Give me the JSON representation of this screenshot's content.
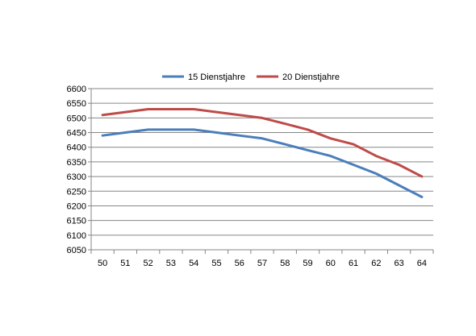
{
  "chart_data": {
    "type": "line",
    "x": [
      50,
      51,
      52,
      53,
      54,
      55,
      56,
      57,
      58,
      59,
      60,
      61,
      62,
      63,
      64
    ],
    "series": [
      {
        "name": "15 Dienstjahre",
        "color": "#4A7EBB",
        "values": [
          6440,
          6450,
          6460,
          6460,
          6460,
          6450,
          6440,
          6430,
          6410,
          6390,
          6370,
          6340,
          6310,
          6270,
          6230
        ]
      },
      {
        "name": "20 Dienstjahre",
        "color": "#BE4B48",
        "values": [
          6510,
          6520,
          6530,
          6530,
          6530,
          6520,
          6510,
          6500,
          6480,
          6460,
          6430,
          6410,
          6370,
          6340,
          6300
        ]
      }
    ],
    "ylim": [
      6050,
      6600
    ],
    "yticks": [
      6050,
      6100,
      6150,
      6200,
      6250,
      6300,
      6350,
      6400,
      6450,
      6500,
      6550,
      6600
    ],
    "grid": true,
    "legend_position": "top"
  }
}
